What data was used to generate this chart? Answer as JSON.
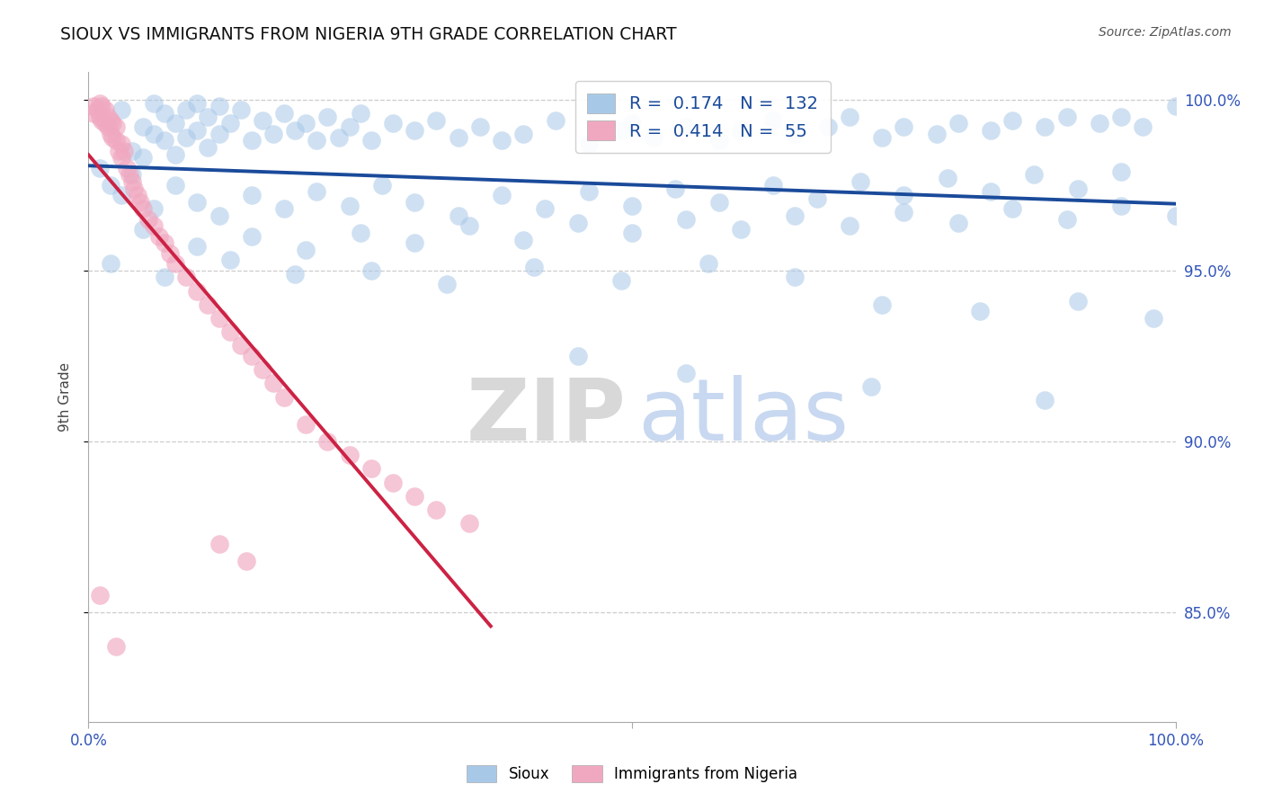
{
  "title": "SIOUX VS IMMIGRANTS FROM NIGERIA 9TH GRADE CORRELATION CHART",
  "source": "Source: ZipAtlas.com",
  "ylabel": "9th Grade",
  "xlim": [
    0.0,
    1.0
  ],
  "ylim": [
    0.818,
    1.008
  ],
  "yticks": [
    0.85,
    0.9,
    0.95,
    1.0
  ],
  "ytick_labels": [
    "85.0%",
    "90.0%",
    "95.0%",
    "100.0%"
  ],
  "blue_color": "#a8c8e8",
  "pink_color": "#f0a8c0",
  "line_blue": "#1a4a9a",
  "line_pink": "#cc2244",
  "background": "#ffffff",
  "grid_color": "#cccccc",
  "title_color": "#111111",
  "axis_label_color": "#3355bb",
  "R1": "0.174",
  "N1": "132",
  "R2": "0.414",
  "N2": "55",
  "sioux_x": [
    0.01,
    0.02,
    0.03,
    0.04,
    0.04,
    0.05,
    0.05,
    0.06,
    0.06,
    0.07,
    0.07,
    0.08,
    0.08,
    0.09,
    0.09,
    0.1,
    0.1,
    0.11,
    0.11,
    0.12,
    0.12,
    0.13,
    0.14,
    0.15,
    0.16,
    0.17,
    0.18,
    0.19,
    0.2,
    0.21,
    0.22,
    0.23,
    0.24,
    0.25,
    0.26,
    0.28,
    0.3,
    0.32,
    0.34,
    0.36,
    0.38,
    0.4,
    0.43,
    0.46,
    0.49,
    0.5,
    0.52,
    0.55,
    0.58,
    0.6,
    0.63,
    0.65,
    0.68,
    0.7,
    0.73,
    0.75,
    0.78,
    0.8,
    0.83,
    0.85,
    0.88,
    0.9,
    0.93,
    0.95,
    0.97,
    1.0,
    0.03,
    0.06,
    0.08,
    0.1,
    0.12,
    0.15,
    0.18,
    0.21,
    0.24,
    0.27,
    0.3,
    0.34,
    0.38,
    0.42,
    0.46,
    0.5,
    0.54,
    0.58,
    0.63,
    0.67,
    0.71,
    0.75,
    0.79,
    0.83,
    0.87,
    0.91,
    0.95,
    0.05,
    0.1,
    0.15,
    0.2,
    0.25,
    0.3,
    0.35,
    0.4,
    0.45,
    0.5,
    0.55,
    0.6,
    0.65,
    0.7,
    0.75,
    0.8,
    0.85,
    0.9,
    0.95,
    1.0,
    0.02,
    0.07,
    0.13,
    0.19,
    0.26,
    0.33,
    0.41,
    0.49,
    0.57,
    0.65,
    0.73,
    0.82,
    0.91,
    0.98,
    0.45,
    0.55,
    0.72,
    0.88
  ],
  "sioux_y": [
    0.98,
    0.975,
    0.997,
    0.985,
    0.978,
    0.992,
    0.983,
    0.999,
    0.99,
    0.996,
    0.988,
    0.993,
    0.984,
    0.997,
    0.989,
    0.999,
    0.991,
    0.995,
    0.986,
    0.998,
    0.99,
    0.993,
    0.997,
    0.988,
    0.994,
    0.99,
    0.996,
    0.991,
    0.993,
    0.988,
    0.995,
    0.989,
    0.992,
    0.996,
    0.988,
    0.993,
    0.991,
    0.994,
    0.989,
    0.992,
    0.988,
    0.99,
    0.994,
    0.987,
    0.991,
    0.993,
    0.989,
    0.992,
    0.988,
    0.991,
    0.994,
    0.99,
    0.992,
    0.995,
    0.989,
    0.992,
    0.99,
    0.993,
    0.991,
    0.994,
    0.992,
    0.995,
    0.993,
    0.995,
    0.992,
    0.998,
    0.972,
    0.968,
    0.975,
    0.97,
    0.966,
    0.972,
    0.968,
    0.973,
    0.969,
    0.975,
    0.97,
    0.966,
    0.972,
    0.968,
    0.973,
    0.969,
    0.974,
    0.97,
    0.975,
    0.971,
    0.976,
    0.972,
    0.977,
    0.973,
    0.978,
    0.974,
    0.979,
    0.962,
    0.957,
    0.96,
    0.956,
    0.961,
    0.958,
    0.963,
    0.959,
    0.964,
    0.961,
    0.965,
    0.962,
    0.966,
    0.963,
    0.967,
    0.964,
    0.968,
    0.965,
    0.969,
    0.966,
    0.952,
    0.948,
    0.953,
    0.949,
    0.95,
    0.946,
    0.951,
    0.947,
    0.952,
    0.948,
    0.94,
    0.938,
    0.941,
    0.936,
    0.925,
    0.92,
    0.916,
    0.912
  ],
  "nigeria_x": [
    0.005,
    0.005,
    0.008,
    0.01,
    0.01,
    0.012,
    0.012,
    0.015,
    0.015,
    0.018,
    0.018,
    0.02,
    0.02,
    0.022,
    0.022,
    0.025,
    0.025,
    0.028,
    0.03,
    0.03,
    0.033,
    0.035,
    0.038,
    0.04,
    0.042,
    0.045,
    0.048,
    0.05,
    0.055,
    0.06,
    0.065,
    0.07,
    0.075,
    0.08,
    0.09,
    0.1,
    0.11,
    0.12,
    0.13,
    0.14,
    0.15,
    0.16,
    0.17,
    0.18,
    0.2,
    0.22,
    0.24,
    0.26,
    0.28,
    0.3,
    0.32,
    0.35,
    0.01,
    0.025,
    0.12,
    0.145
  ],
  "nigeria_y": [
    0.998,
    0.996,
    0.997,
    0.999,
    0.995,
    0.998,
    0.994,
    0.997,
    0.993,
    0.995,
    0.992,
    0.994,
    0.99,
    0.993,
    0.989,
    0.992,
    0.988,
    0.985,
    0.987,
    0.983,
    0.985,
    0.98,
    0.978,
    0.976,
    0.974,
    0.972,
    0.97,
    0.968,
    0.965,
    0.963,
    0.96,
    0.958,
    0.955,
    0.952,
    0.948,
    0.944,
    0.94,
    0.936,
    0.932,
    0.928,
    0.925,
    0.921,
    0.917,
    0.913,
    0.905,
    0.9,
    0.896,
    0.892,
    0.888,
    0.884,
    0.88,
    0.876,
    0.855,
    0.84,
    0.87,
    0.865
  ]
}
